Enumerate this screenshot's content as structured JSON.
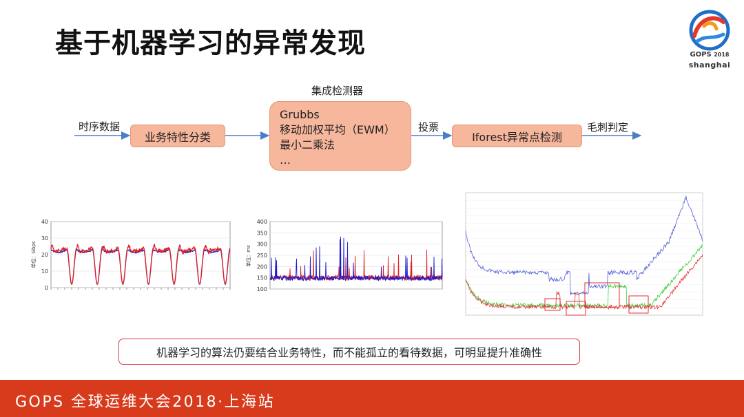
{
  "title": "基于机器学习的异常发现",
  "logo": {
    "brand": "GOPS",
    "year": "2018",
    "city": "shanghai"
  },
  "flow": {
    "input_label": "时序数据",
    "box1": "业务特性分类",
    "detector_caption": "集成检测器",
    "detector_lines": [
      "Grubbs",
      "移动加权平均（EWM）",
      "最小二乘法",
      "…"
    ],
    "vote_label": "投票",
    "box3": "Iforest异常点检测",
    "output_label": "毛刺判定"
  },
  "chart_data": [
    {
      "type": "line",
      "ylabel": "单位：Gbps",
      "ylim": [
        0,
        40
      ],
      "yticks": [
        "40",
        "30",
        "20",
        "10",
        "0"
      ],
      "series": [
        {
          "color": "#2a2acb",
          "pattern": "periodic",
          "periods": 7,
          "low": 2,
          "high": 23
        },
        {
          "color": "#e02020",
          "pattern": "periodic",
          "periods": 7,
          "low": 2,
          "high": 24
        }
      ]
    },
    {
      "type": "line",
      "ylabel": "单位：ms",
      "ylim": [
        100,
        400
      ],
      "yticks": [
        "400",
        "350",
        "300",
        "250",
        "200",
        "150",
        "100"
      ],
      "series": [
        {
          "color": "#e02020",
          "base": 150,
          "noise": 12
        },
        {
          "color": "#1a1ad0",
          "base": 148,
          "noise": 10
        }
      ]
    },
    {
      "type": "line",
      "series": [
        {
          "color": "#5a63d8"
        },
        {
          "color": "#3fcf3f"
        },
        {
          "color": "#e03a3a"
        }
      ],
      "highlight_color": "#e03030"
    }
  ],
  "note": "机器学习的算法仍要结合业务特性，而不能孤立的看待数据，可明显提升准确性",
  "footer": "GOPS 全球运维大会2018·上海站"
}
